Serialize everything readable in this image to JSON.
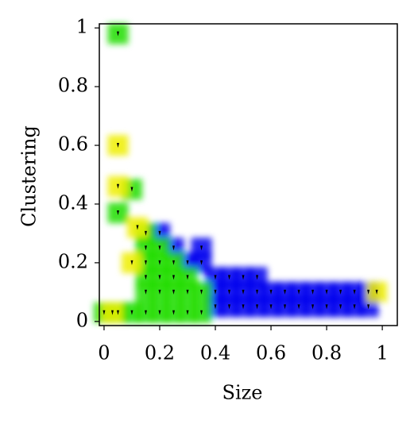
{
  "chart_data": {
    "type": "scatter",
    "xlabel": "Size",
    "ylabel": "Clustering",
    "xlim": [
      -0.017,
      1.054
    ],
    "ylim": [
      -0.014,
      1.014
    ],
    "xticks": [
      0,
      0.2,
      0.4,
      0.6,
      0.8,
      1
    ],
    "yticks": [
      0,
      0.2,
      0.4,
      0.6,
      0.8,
      1
    ],
    "series": [
      {
        "color": "#0000ee",
        "x": [
          0.4,
          0.45,
          0.5,
          0.55,
          0.6,
          0.65,
          0.7,
          0.75,
          0.8,
          0.85,
          0.9,
          0.95,
          0.4,
          0.45,
          0.5,
          0.55,
          0.6,
          0.65,
          0.7,
          0.75,
          0.8,
          0.85,
          0.9,
          0.95,
          0.4,
          0.45,
          0.5,
          0.55,
          0.3,
          0.35,
          0.25,
          0.35,
          0.2
        ],
        "values": [
          0.05,
          0.05,
          0.05,
          0.05,
          0.05,
          0.05,
          0.05,
          0.05,
          0.05,
          0.05,
          0.05,
          0.05,
          0.1,
          0.1,
          0.1,
          0.1,
          0.1,
          0.1,
          0.1,
          0.1,
          0.1,
          0.1,
          0.1,
          0.1,
          0.15,
          0.15,
          0.15,
          0.15,
          0.2,
          0.2,
          0.25,
          0.25,
          0.3
        ]
      },
      {
        "color": "#22dd00",
        "x": [
          0.1,
          0.15,
          0.2,
          0.25,
          0.3,
          0.35,
          0.15,
          0.2,
          0.25,
          0.3,
          0.35,
          0.15,
          0.2,
          0.25,
          0.3,
          0.15,
          0.2,
          0.25,
          0.15,
          0.2,
          0.15,
          0.05,
          0.1,
          0.05,
          0.0,
          0.05
        ],
        "values": [
          0.03,
          0.03,
          0.03,
          0.03,
          0.03,
          0.03,
          0.1,
          0.1,
          0.1,
          0.1,
          0.1,
          0.15,
          0.15,
          0.15,
          0.15,
          0.2,
          0.2,
          0.2,
          0.25,
          0.25,
          0.3,
          0.98,
          0.45,
          0.37,
          0.03,
          0.03
        ]
      },
      {
        "color": "#eeee00",
        "x": [
          0.05,
          0.05,
          0.1,
          0.12,
          0.98,
          0.03
        ],
        "values": [
          0.6,
          0.46,
          0.2,
          0.32,
          0.1,
          0.03
        ]
      }
    ]
  }
}
